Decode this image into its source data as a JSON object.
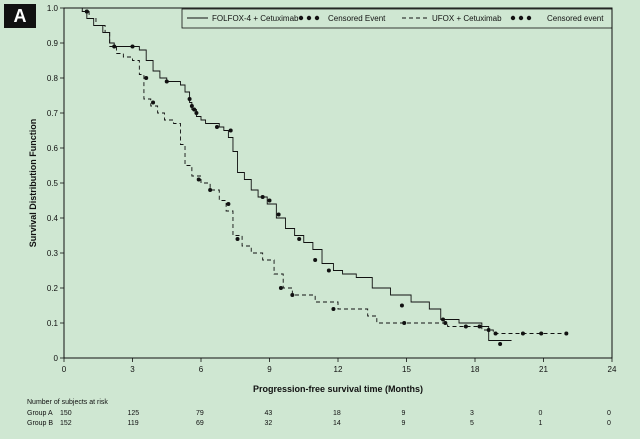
{
  "panel_label": "A",
  "chart_data": {
    "type": "line",
    "title": "",
    "xlabel": "Progression-free survival time (Months)",
    "ylabel": "Survival Distribution Function",
    "xlim": [
      0,
      24
    ],
    "ylim": [
      0,
      1.0
    ],
    "x_ticks": [
      0,
      3,
      6,
      9,
      12,
      15,
      18,
      21,
      24
    ],
    "y_ticks": [
      "0",
      "0.1",
      "0.2",
      "0.3",
      "0.4",
      "0.5",
      "0.6",
      "0.7",
      "0.8",
      "0.9",
      "1.0"
    ],
    "legend_position": "top",
    "legend": {
      "group_a_label": "FOLFOX-4 + Cetuximab",
      "group_a_censor_label": "Censored Event",
      "group_b_label": "UFOX + Cetuximab",
      "group_b_censor_label": "Censored event"
    },
    "series": [
      {
        "name": "FOLFOX-4 + Cetuximab",
        "style": "solid",
        "x": [
          0,
          0.8,
          1.0,
          1.3,
          1.7,
          2.0,
          2.2,
          2.4,
          2.6,
          2.8,
          3.0,
          3.3,
          3.6,
          3.9,
          4.2,
          4.5,
          4.8,
          5.1,
          5.3,
          5.5,
          5.6,
          5.8,
          6.0,
          6.2,
          6.5,
          6.8,
          7.0,
          7.2,
          7.4,
          7.6,
          7.9,
          8.2,
          8.5,
          8.9,
          9.3,
          9.7,
          10.1,
          10.5,
          10.9,
          11.3,
          11.8,
          12.2,
          12.8,
          13.5,
          14.3,
          15.2,
          16.0,
          16.5,
          17.3,
          18.3,
          18.6,
          19.6
        ],
        "y": [
          1.0,
          0.99,
          0.97,
          0.95,
          0.93,
          0.9,
          0.89,
          0.89,
          0.89,
          0.89,
          0.89,
          0.88,
          0.85,
          0.82,
          0.8,
          0.79,
          0.79,
          0.78,
          0.76,
          0.73,
          0.71,
          0.69,
          0.68,
          0.67,
          0.67,
          0.66,
          0.65,
          0.63,
          0.59,
          0.53,
          0.51,
          0.48,
          0.46,
          0.44,
          0.4,
          0.37,
          0.35,
          0.33,
          0.31,
          0.27,
          0.25,
          0.24,
          0.23,
          0.2,
          0.18,
          0.16,
          0.14,
          0.11,
          0.1,
          0.09,
          0.05,
          0.05
        ],
        "censored_x": [
          1.0,
          2.2,
          3.0,
          4.5,
          5.5,
          5.6,
          5.7,
          5.8,
          6.7,
          7.3,
          8.7,
          9.0,
          9.4,
          10.3,
          11.0,
          11.6,
          14.8,
          16.6,
          18.6,
          19.1
        ],
        "censored_y": [
          0.99,
          0.89,
          0.89,
          0.79,
          0.74,
          0.72,
          0.71,
          0.7,
          0.66,
          0.65,
          0.46,
          0.45,
          0.41,
          0.34,
          0.28,
          0.25,
          0.15,
          0.11,
          0.08,
          0.04
        ]
      },
      {
        "name": "UFOX + Cetuximab",
        "style": "dashed",
        "x": [
          0,
          0.8,
          1.1,
          1.4,
          1.8,
          2.0,
          2.3,
          2.6,
          3.0,
          3.3,
          3.5,
          3.8,
          4.1,
          4.4,
          4.8,
          5.1,
          5.3,
          5.6,
          6.0,
          6.4,
          6.8,
          7.1,
          7.4,
          7.8,
          8.2,
          8.7,
          9.2,
          9.6,
          10.0,
          11.0,
          12.0,
          13.3,
          13.7,
          15.0,
          16.0,
          16.8,
          17.8,
          18.3,
          18.8,
          22.0
        ],
        "y": [
          1.0,
          0.99,
          0.97,
          0.95,
          0.93,
          0.89,
          0.87,
          0.86,
          0.85,
          0.81,
          0.74,
          0.72,
          0.7,
          0.68,
          0.67,
          0.61,
          0.55,
          0.52,
          0.5,
          0.48,
          0.45,
          0.42,
          0.35,
          0.32,
          0.3,
          0.28,
          0.24,
          0.2,
          0.18,
          0.16,
          0.14,
          0.12,
          0.1,
          0.1,
          0.1,
          0.09,
          0.09,
          0.08,
          0.07,
          0.07
        ],
        "censored_x": [
          1.0,
          3.6,
          3.9,
          5.9,
          6.4,
          7.2,
          7.6,
          9.5,
          10.0,
          11.8,
          14.9,
          16.7,
          17.6,
          18.2,
          18.9,
          20.1,
          20.9,
          22.0
        ],
        "censored_y": [
          0.99,
          0.8,
          0.73,
          0.51,
          0.48,
          0.44,
          0.34,
          0.2,
          0.18,
          0.14,
          0.1,
          0.1,
          0.09,
          0.09,
          0.07,
          0.07,
          0.07,
          0.07
        ]
      }
    ]
  },
  "risk_table": {
    "title": "Number of subjects at risk",
    "rows": [
      {
        "label": "Group A",
        "values": [
          "150",
          "125",
          "79",
          "43",
          "18",
          "9",
          "3",
          "0",
          "0"
        ]
      },
      {
        "label": "Group B",
        "values": [
          "152",
          "119",
          "69",
          "32",
          "14",
          "9",
          "5",
          "1",
          "0"
        ]
      }
    ]
  }
}
